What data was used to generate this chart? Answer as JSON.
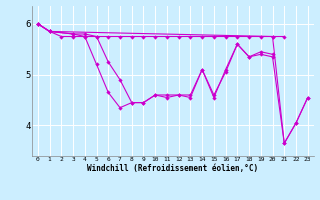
{
  "xlabel": "Windchill (Refroidissement éolien,°C)",
  "background_color": "#cceeff",
  "line_color": "#cc00cc",
  "grid_color": "#ffffff",
  "xlim": [
    -0.5,
    23.5
  ],
  "ylim": [
    3.4,
    6.35
  ],
  "yticks": [
    4,
    5,
    6
  ],
  "xticks": [
    0,
    1,
    2,
    3,
    4,
    5,
    6,
    7,
    8,
    9,
    10,
    11,
    12,
    13,
    14,
    15,
    16,
    17,
    18,
    19,
    20,
    21,
    22,
    23
  ],
  "series": [
    {
      "x": [
        0,
        1,
        2,
        3,
        4,
        5,
        6,
        7,
        8,
        9,
        10,
        11,
        12,
        13,
        14,
        15,
        16,
        17,
        18,
        19,
        20,
        21
      ],
      "y": [
        6.0,
        5.85,
        5.75,
        5.75,
        5.75,
        5.75,
        5.75,
        5.75,
        5.75,
        5.75,
        5.75,
        5.75,
        5.75,
        5.75,
        5.75,
        5.75,
        5.75,
        5.75,
        5.75,
        5.75,
        5.75,
        5.75
      ]
    },
    {
      "x": [
        0,
        1,
        3,
        4,
        5,
        6,
        7,
        8,
        9,
        10,
        11,
        12,
        13,
        14,
        15,
        16,
        17,
        18,
        19,
        20
      ],
      "y": [
        6.0,
        5.85,
        5.8,
        5.8,
        5.75,
        5.25,
        4.9,
        4.45,
        4.45,
        4.6,
        4.6,
        4.6,
        4.6,
        5.1,
        4.6,
        5.05,
        5.6,
        5.35,
        5.45,
        5.4
      ]
    },
    {
      "x": [
        0,
        1,
        3,
        4,
        5,
        6,
        7,
        8,
        9,
        10,
        11,
        12,
        13,
        14,
        15,
        16,
        17,
        18,
        19,
        20,
        21,
        22,
        23
      ],
      "y": [
        6.0,
        5.85,
        5.8,
        5.75,
        5.2,
        4.65,
        4.35,
        4.45,
        4.45,
        4.6,
        4.55,
        4.6,
        4.55,
        5.1,
        4.55,
        5.1,
        5.6,
        5.35,
        5.4,
        5.35,
        3.65,
        4.05,
        4.55
      ]
    },
    {
      "x": [
        0,
        1,
        20,
        21,
        22,
        23
      ],
      "y": [
        6.0,
        5.85,
        5.75,
        3.65,
        4.05,
        4.55
      ]
    }
  ]
}
